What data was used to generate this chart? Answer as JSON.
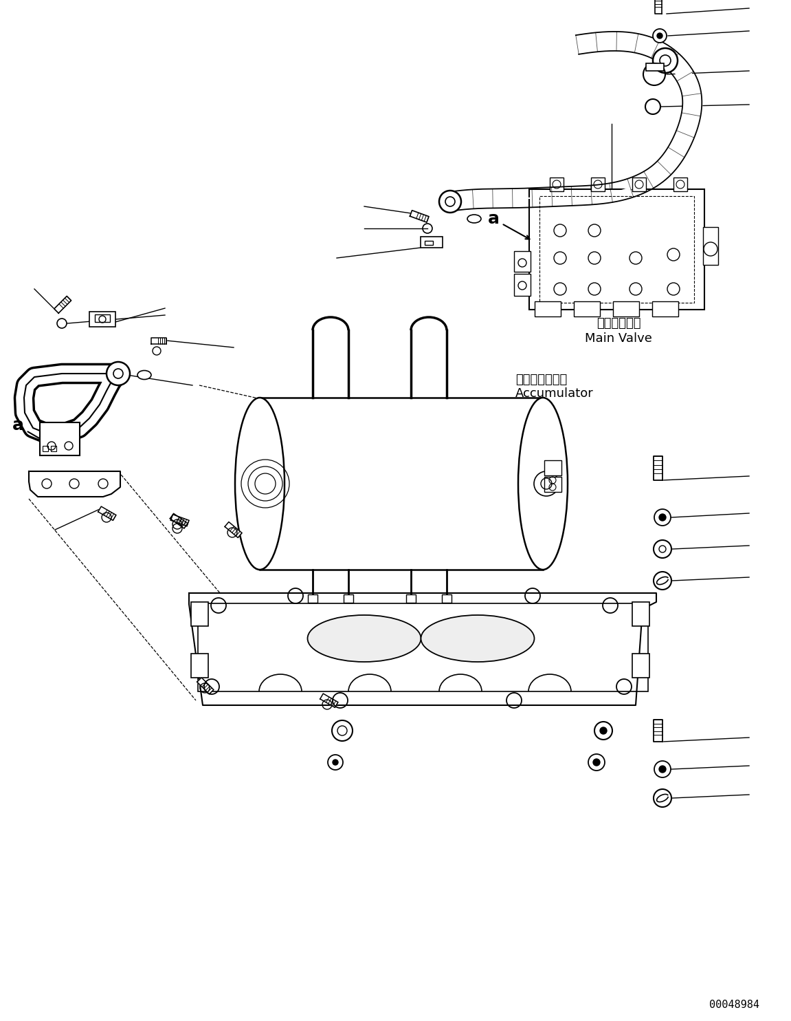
{
  "bg_color": "#ffffff",
  "line_color": "#000000",
  "line_width": 1.2,
  "footer_text": "00048984",
  "label_main_valve_jp": "メインバルブ",
  "label_main_valve_en": "Main Valve",
  "label_accumulator_jp": "アキュムレータ",
  "label_accumulator_en": "Accumulator",
  "label_a": "a"
}
